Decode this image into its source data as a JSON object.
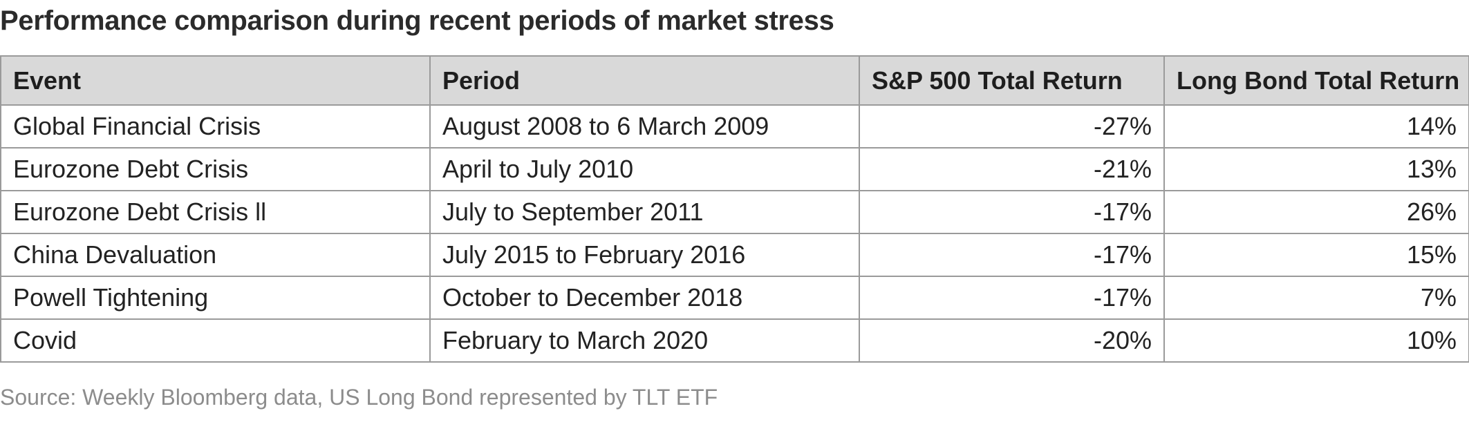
{
  "title": "Performance comparison during recent periods of market stress",
  "table": {
    "headers": [
      "Event",
      "Period",
      "S&P 500 Total Return",
      "Long Bond Total Return"
    ],
    "rows": [
      [
        "Global Financial Crisis",
        "August 2008 to 6 March 2009",
        "-27%",
        "14%"
      ],
      [
        "Eurozone Debt Crisis",
        "April to July 2010",
        "-21%",
        "13%"
      ],
      [
        "Eurozone Debt Crisis ll",
        "July to September 2011",
        "-17%",
        "26%"
      ],
      [
        "China Devaluation",
        "July 2015 to February 2016",
        "-17%",
        "15%"
      ],
      [
        "Powell Tightening",
        "October to December 2018",
        "-17%",
        "7%"
      ],
      [
        "Covid",
        "February to March 2020",
        "-20%",
        "10%"
      ]
    ]
  },
  "source": "Source: Weekly Bloomberg data, US Long Bond represented by TLT ETF"
}
